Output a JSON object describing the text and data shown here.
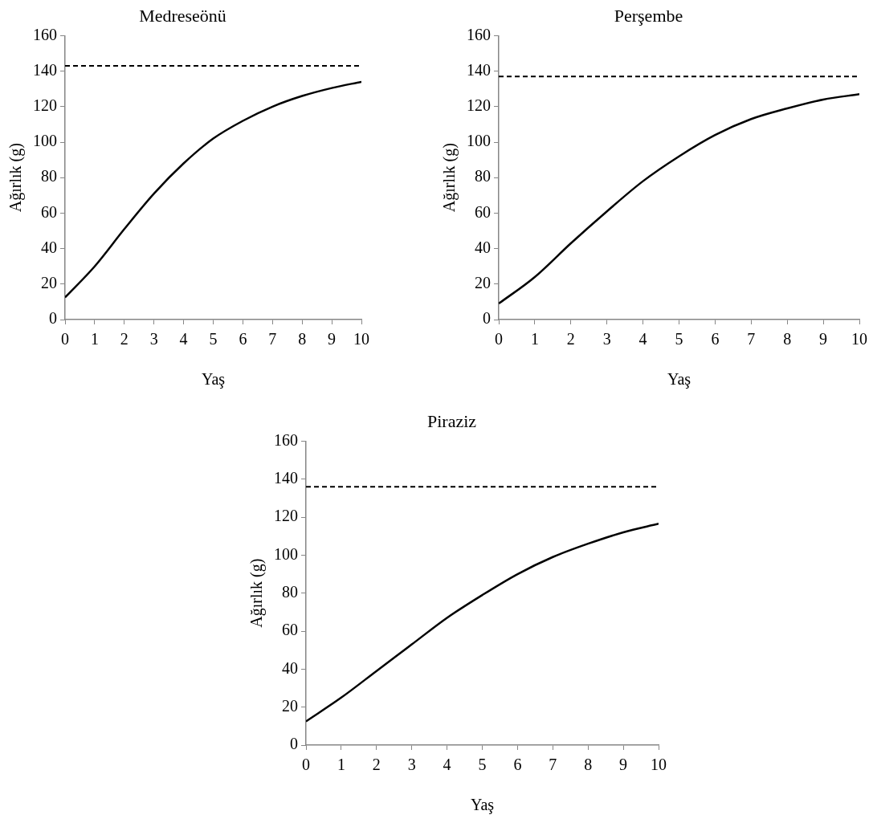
{
  "chart_data": [
    {
      "type": "line",
      "title": "Medreseönü",
      "xlabel": "Yaş",
      "ylabel": "Ağırlık (g)",
      "x": [
        0,
        1,
        2,
        3,
        4,
        5,
        6,
        7,
        8,
        9,
        10
      ],
      "xlim": [
        0,
        10
      ],
      "xticks": [
        0,
        1,
        2,
        3,
        4,
        5,
        6,
        7,
        8,
        9,
        10
      ],
      "ylim": [
        0,
        160
      ],
      "yticks": [
        0,
        20,
        40,
        60,
        80,
        100,
        120,
        140,
        160
      ],
      "grid": false,
      "legend": false,
      "marker": "none",
      "line_style": "solid",
      "series": [
        {
          "color": "#000000",
          "values": [
            12.5,
            30,
            51,
            71,
            88,
            102,
            112,
            120,
            126,
            130.5,
            134
          ]
        }
      ],
      "ref_lines": [
        {
          "axis": "y",
          "value": 143,
          "color": "#000000",
          "line_style": "dashed"
        }
      ]
    },
    {
      "type": "line",
      "title": "Perşembe",
      "xlabel": "Yaş",
      "ylabel": "Ağırlık (g)",
      "x": [
        0,
        1,
        2,
        3,
        4,
        5,
        6,
        7,
        8,
        9,
        10
      ],
      "xlim": [
        0,
        10
      ],
      "xticks": [
        0,
        1,
        2,
        3,
        4,
        5,
        6,
        7,
        8,
        9,
        10
      ],
      "ylim": [
        0,
        160
      ],
      "yticks": [
        0,
        20,
        40,
        60,
        80,
        100,
        120,
        140,
        160
      ],
      "grid": false,
      "legend": false,
      "marker": "none",
      "line_style": "solid",
      "series": [
        {
          "color": "#000000",
          "values": [
            9,
            24,
            43,
            61,
            78,
            92,
            104,
            113,
            119,
            124,
            127
          ]
        }
      ],
      "ref_lines": [
        {
          "axis": "y",
          "value": 137,
          "color": "#000000",
          "line_style": "dashed"
        }
      ]
    },
    {
      "type": "line",
      "title": "Piraziz",
      "xlabel": "Yaş",
      "ylabel": "Ağırlık (g)",
      "x": [
        0,
        1,
        2,
        3,
        4,
        5,
        6,
        7,
        8,
        9,
        10
      ],
      "xlim": [
        0,
        10
      ],
      "xticks": [
        0,
        1,
        2,
        3,
        4,
        5,
        6,
        7,
        8,
        9,
        10
      ],
      "ylim": [
        0,
        160
      ],
      "yticks": [
        0,
        20,
        40,
        60,
        80,
        100,
        120,
        140,
        160
      ],
      "grid": false,
      "legend": false,
      "marker": "none",
      "line_style": "solid",
      "series": [
        {
          "color": "#000000",
          "values": [
            12.5,
            25,
            39,
            53,
            67,
            79,
            90,
            99,
            106,
            112,
            116.5
          ]
        }
      ],
      "ref_lines": [
        {
          "axis": "y",
          "value": 136,
          "color": "#000000",
          "line_style": "dashed"
        }
      ]
    }
  ]
}
